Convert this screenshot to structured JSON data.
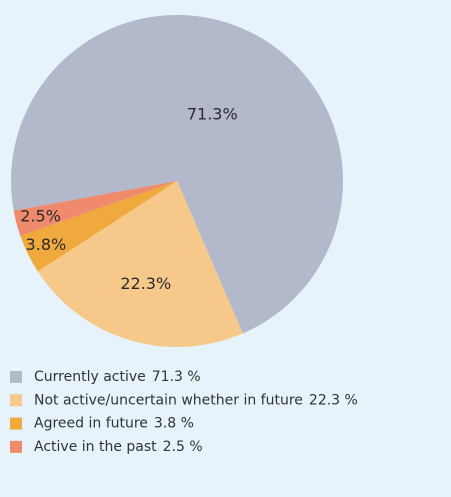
{
  "chart_data": {
    "type": "pie",
    "categories": [
      "Currently active",
      "Not active/uncertain whether in future",
      "Agreed in future",
      "Active in the past"
    ],
    "values": [
      71.3,
      22.3,
      3.8,
      2.5
    ],
    "value_labels": [
      "71.3%",
      "22.3%",
      "3.8%",
      "2.5%"
    ],
    "legend_value_labels": [
      "71.3 %",
      "22.3 %",
      "3.8 %",
      "2.5 %"
    ],
    "colors": [
      "#b3b8cb",
      "#f6c98a",
      "#f0a93c",
      "#ef8a6d"
    ],
    "legend": "bottom"
  }
}
